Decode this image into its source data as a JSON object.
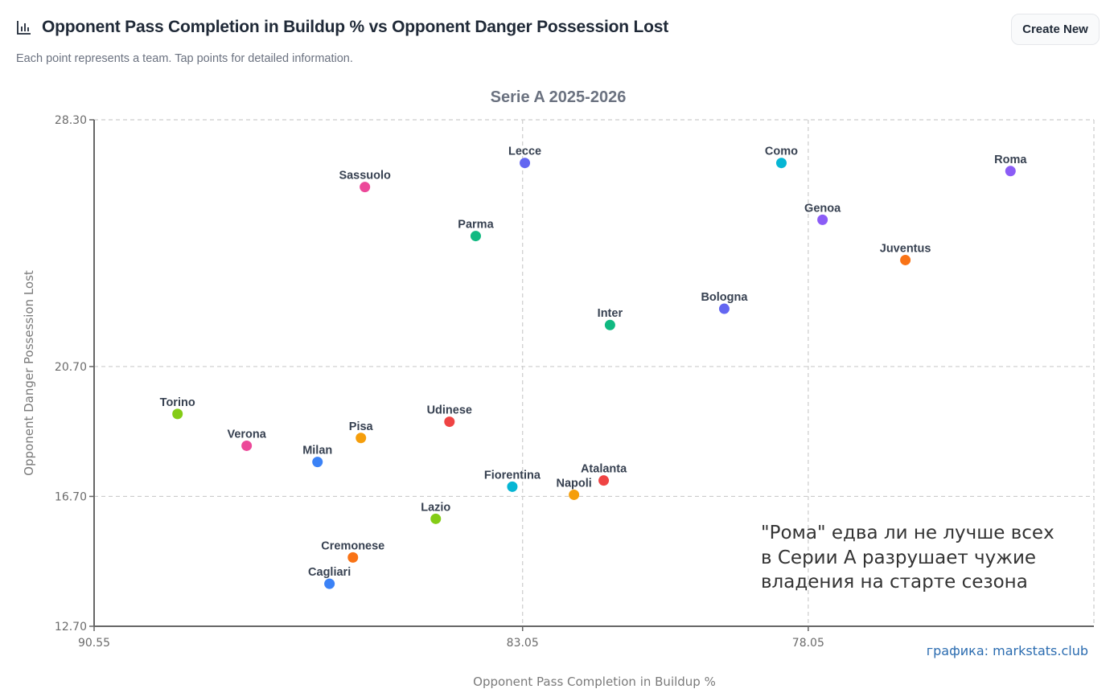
{
  "header": {
    "icon": "bar-chart-icon",
    "title": "Opponent Pass Completion in Buildup % vs Opponent Danger Possession Lost",
    "subtitle": "Each point represents a team. Tap points for detailed information.",
    "create_button_label": "Create New"
  },
  "chart_data": {
    "type": "scatter",
    "title": "Serie A 2025-2026",
    "xlabel": "Opponent Pass Completion in Buildup %",
    "ylabel": "Opponent Danger Possession Lost",
    "xlim": [
      90.55,
      73.05
    ],
    "x_reversed": true,
    "ylim": [
      12.7,
      28.3
    ],
    "x_ticks": [
      "90.55",
      "83.05",
      "78.05"
    ],
    "x_tick_values": [
      90.55,
      83.05,
      78.05
    ],
    "y_ticks": [
      "28.30",
      "20.70",
      "16.70",
      "12.70"
    ],
    "y_tick_values": [
      28.3,
      20.7,
      16.7,
      12.7
    ],
    "grid": true,
    "points": [
      {
        "team": "Torino",
        "x": 89.09,
        "y": 19.24,
        "color": "#84cc16"
      },
      {
        "team": "Verona",
        "x": 87.88,
        "y": 18.26,
        "color": "#ec4899"
      },
      {
        "team": "Milan",
        "x": 86.64,
        "y": 17.76,
        "color": "#3b82f6"
      },
      {
        "team": "Pisa",
        "x": 85.88,
        "y": 18.5,
        "color": "#f59e0b"
      },
      {
        "team": "Udinese",
        "x": 84.33,
        "y": 19.0,
        "color": "#ef4444"
      },
      {
        "team": "Fiorentina",
        "x": 83.23,
        "y": 17.0,
        "color": "#06b6d4"
      },
      {
        "team": "Napoli",
        "x": 82.15,
        "y": 16.75,
        "color": "#f59e0b"
      },
      {
        "team": "Atalanta",
        "x": 81.63,
        "y": 17.19,
        "color": "#ef4444"
      },
      {
        "team": "Lazio",
        "x": 84.57,
        "y": 16.01,
        "color": "#84cc16"
      },
      {
        "team": "Cremonese",
        "x": 86.02,
        "y": 14.82,
        "color": "#f97316"
      },
      {
        "team": "Cagliari",
        "x": 86.43,
        "y": 14.01,
        "color": "#3b82f6"
      },
      {
        "team": "Sassuolo",
        "x": 85.81,
        "y": 26.23,
        "color": "#ec4899"
      },
      {
        "team": "Lecce",
        "x": 83.01,
        "y": 26.97,
        "color": "#6366f1"
      },
      {
        "team": "Parma",
        "x": 83.87,
        "y": 24.72,
        "color": "#10b981"
      },
      {
        "team": "Inter",
        "x": 81.52,
        "y": 21.98,
        "color": "#10b981"
      },
      {
        "team": "Bologna",
        "x": 79.52,
        "y": 22.48,
        "color": "#6366f1"
      },
      {
        "team": "Como",
        "x": 78.52,
        "y": 26.97,
        "color": "#06b6d4"
      },
      {
        "team": "Genoa",
        "x": 77.8,
        "y": 25.22,
        "color": "#8b5cf6"
      },
      {
        "team": "Juventus",
        "x": 76.35,
        "y": 23.98,
        "color": "#f97316"
      },
      {
        "team": "Roma",
        "x": 74.51,
        "y": 26.72,
        "color": "#8b5cf6"
      }
    ],
    "annotation": [
      "\"Рома\" едва ли не лучше всех",
      "в Серии А разрушает чужие",
      "владения на старте сезона"
    ],
    "credit": "графика: markstats.club"
  }
}
